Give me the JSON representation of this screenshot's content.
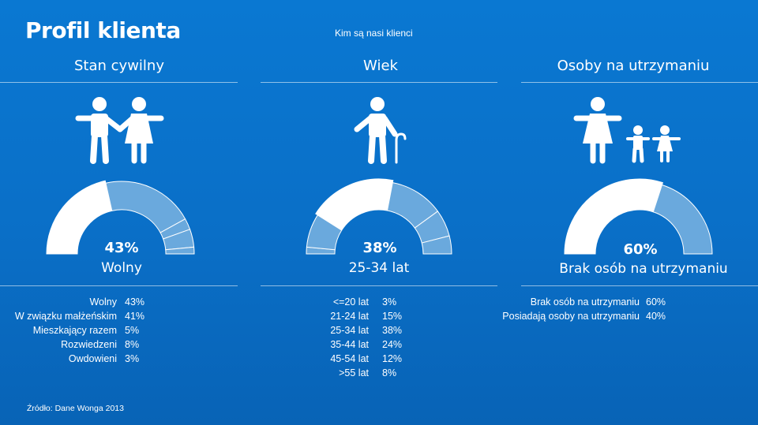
{
  "header": {
    "title": "Profil klienta",
    "subtitle": "Kim są nasi klienci"
  },
  "footer": {
    "source": "Źródło: Dane Wonga 2013"
  },
  "colors": {
    "background": "#0a6fc7",
    "highlight": "#ffffff",
    "segment": "#6aa9dd",
    "segment_border": "#ffffff"
  },
  "chart_data": [
    {
      "type": "pie",
      "variant": "half-donut gauge",
      "title": "Stan cywilny",
      "icon": "couple-icon",
      "highlight_value": "43%",
      "highlight_label": "Wolny",
      "categories": [
        "Wolny",
        "W związku małżeńskim",
        "Mieszkający razem",
        "Rozwiedzeni",
        "Owdowieni"
      ],
      "values": [
        43,
        41,
        5,
        8,
        3
      ],
      "value_labels": [
        "43%",
        "41%",
        "5%",
        "8%",
        "3%"
      ],
      "highlight_index": 0
    },
    {
      "type": "pie",
      "variant": "half-donut gauge",
      "title": "Wiek",
      "icon": "elderly-person-with-cane-icon",
      "highlight_value": "38%",
      "highlight_label": "25-34 lat",
      "categories": [
        "<=20 lat",
        "21-24 lat",
        "25-34 lat",
        "35-44 lat",
        "45-54 lat",
        ">55 lat"
      ],
      "values": [
        3,
        15,
        38,
        24,
        12,
        8
      ],
      "value_labels": [
        "3%",
        "15%",
        "38%",
        "24%",
        "12%",
        "8%"
      ],
      "highlight_index": 2
    },
    {
      "type": "pie",
      "variant": "half-donut gauge",
      "title": "Osoby na utrzymaniu",
      "icon": "parent-with-children-icon",
      "highlight_value": "60%",
      "highlight_label": "Brak osób na utrzymaniu",
      "categories": [
        "Brak osób na utrzymaniu",
        "Posiadają osoby na utrzymaniu"
      ],
      "values": [
        60,
        40
      ],
      "value_labels": [
        "60%",
        "40%"
      ],
      "highlight_index": 0
    }
  ]
}
